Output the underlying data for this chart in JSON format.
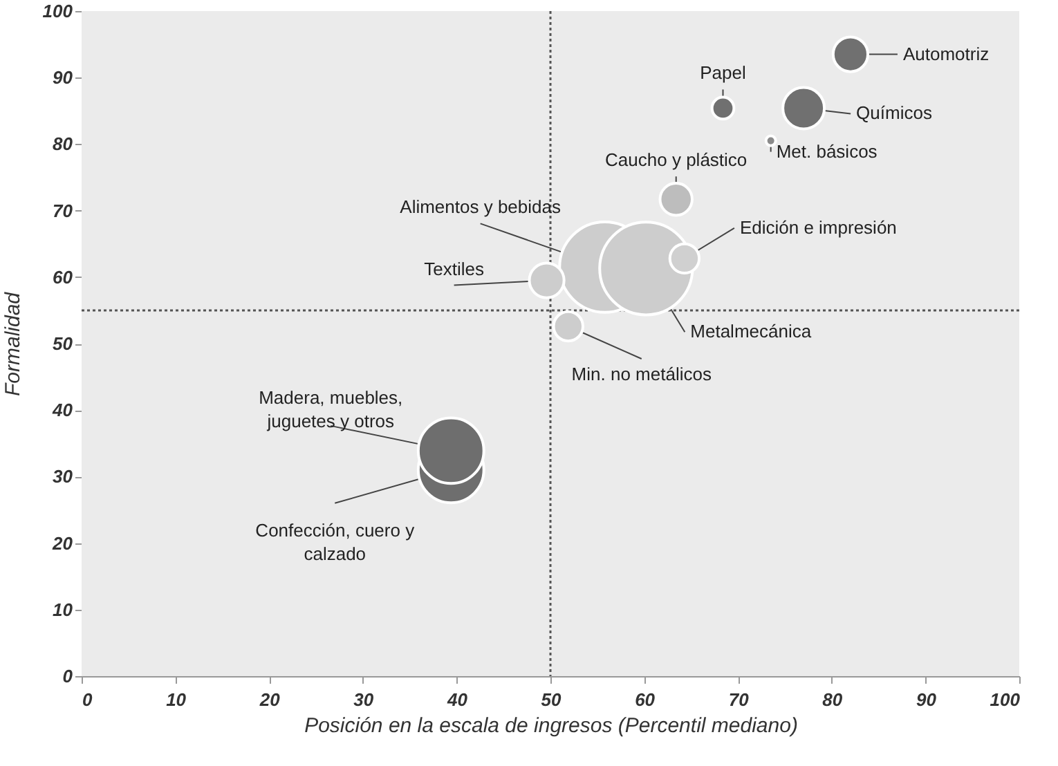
{
  "chart_data": {
    "type": "bubble",
    "xlabel": "Posición en la escala de ingresos (Percentil mediano)",
    "ylabel": "Formalidad",
    "x": [
      55.8,
      60.2,
      64.3,
      49.6,
      51.9,
      63.4,
      39.4,
      39.4,
      68.4,
      77,
      73.5,
      82
    ],
    "values": [
      61.5,
      61.3,
      62.8,
      59.5,
      52.6,
      71.7,
      31,
      33.9,
      85.4,
      85.4,
      80.5,
      93.5
    ],
    "sizes": [
      0.95,
      1,
      0.1,
      0.14,
      0.1,
      0.12,
      0.5,
      0.5,
      0.056,
      0.2,
      0.011,
      0.14
    ],
    "colors": [
      "#cdcdcd",
      "#cdcdcd",
      "#d0d0d0",
      "#cdcdcd",
      "#cdcdcd",
      "#bdbdbd",
      "#6e6e6e",
      "#6e6e6e",
      "#707070",
      "#707070",
      "#8a8a8a",
      "#707070"
    ],
    "annotations": [
      {
        "text": "Alimentos y bebidas",
        "x": 55.8,
        "y": 61.5
      },
      {
        "text": "Metalmecánica",
        "x": 60.2,
        "y": 61.3
      },
      {
        "text": "Edición e impresión",
        "x": 64.3,
        "y": 62.8
      },
      {
        "text": "Textiles",
        "x": 49.6,
        "y": 59.5
      },
      {
        "text": "Min. no metálicos",
        "x": 51.9,
        "y": 52.6
      },
      {
        "text": "Caucho y plástico",
        "x": 63.4,
        "y": 71.7
      },
      {
        "text": "Confección, cuero y calzado",
        "x": 39.4,
        "y": 31
      },
      {
        "text": "Madera, muebles, juguetes y otros",
        "x": 39.4,
        "y": 33.9
      },
      {
        "text": "Papel",
        "x": 68.4,
        "y": 85.4
      },
      {
        "text": "Químicos",
        "x": 77,
        "y": 85.4
      },
      {
        "text": "Met. básicos",
        "x": 73.5,
        "y": 80.5
      },
      {
        "text": "Automotriz",
        "x": 82,
        "y": 93.5
      }
    ],
    "ref_lines": [
      {
        "axis": "x",
        "value": 50,
        "line_style": "dotted",
        "color": "#555555"
      },
      {
        "axis": "y",
        "value": 55,
        "line_style": "dotted",
        "color": "#555555"
      }
    ],
    "xlim": [
      0,
      100
    ],
    "xticks": [
      0,
      10,
      20,
      30,
      40,
      50,
      60,
      70,
      80,
      90,
      100
    ],
    "ylim": [
      0,
      100
    ],
    "yticks": [
      0,
      10,
      20,
      30,
      40,
      50,
      60,
      70,
      80,
      90,
      100
    ],
    "grid": false
  }
}
